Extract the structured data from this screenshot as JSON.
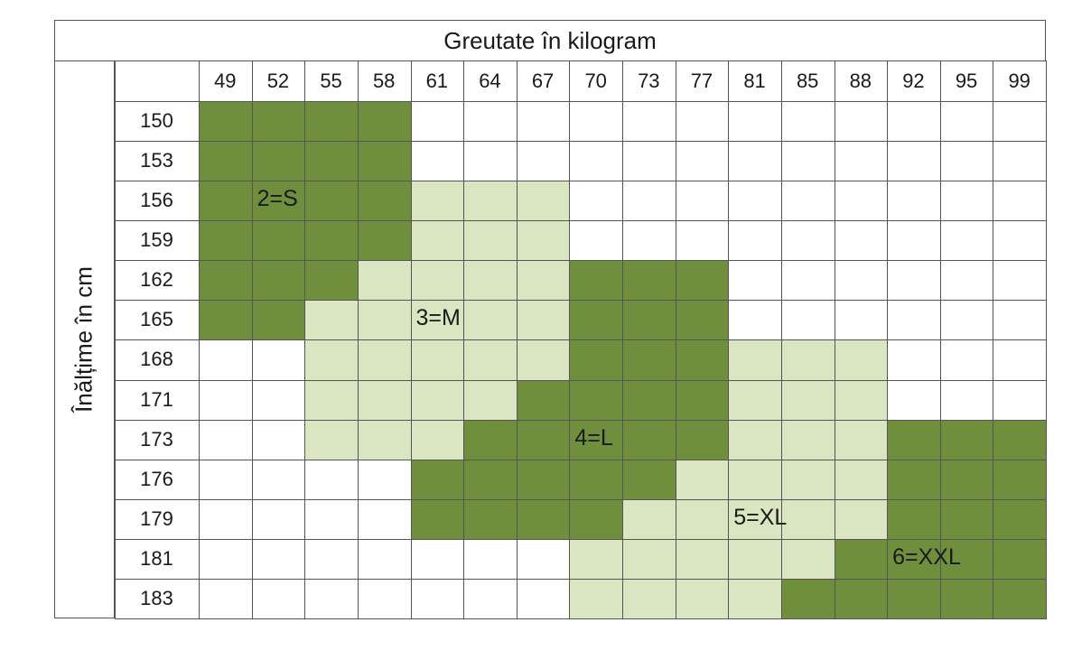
{
  "title": "Greutate în kilogram",
  "side_label": "Înălțime în cm",
  "colors": {
    "S": "#6f8f3d",
    "M": "#dae6c2",
    "L": "#6f8f3d",
    "XL": "#dae6c2",
    "XXL": "#6f8f3d",
    "empty": "#ffffff",
    "grid": "#555555"
  },
  "chart_data": {
    "type": "table",
    "title": "Greutate în kilogram",
    "ylabel": "Înălțime în cm",
    "columns": [
      "49",
      "52",
      "55",
      "58",
      "61",
      "64",
      "67",
      "70",
      "73",
      "77",
      "81",
      "85",
      "88",
      "92",
      "95",
      "99"
    ],
    "rows": [
      "150",
      "153",
      "156",
      "159",
      "162",
      "165",
      "168",
      "171",
      "173",
      "176",
      "179",
      "181",
      "183"
    ],
    "cells": [
      [
        "S",
        "S",
        "S",
        "S",
        "",
        "",
        "",
        "",
        "",
        "",
        "",
        "",
        "",
        "",
        "",
        ""
      ],
      [
        "S",
        "S",
        "S",
        "S",
        "",
        "",
        "",
        "",
        "",
        "",
        "",
        "",
        "",
        "",
        "",
        ""
      ],
      [
        "S",
        "S",
        "S",
        "S",
        "M",
        "M",
        "M",
        "",
        "",
        "",
        "",
        "",
        "",
        "",
        "",
        ""
      ],
      [
        "S",
        "S",
        "S",
        "S",
        "M",
        "M",
        "M",
        "",
        "",
        "",
        "",
        "",
        "",
        "",
        "",
        ""
      ],
      [
        "S",
        "S",
        "S",
        "M",
        "M",
        "M",
        "M",
        "L",
        "L",
        "L",
        "",
        "",
        "",
        "",
        "",
        ""
      ],
      [
        "S",
        "S",
        "M",
        "M",
        "M",
        "M",
        "M",
        "L",
        "L",
        "L",
        "",
        "",
        "",
        "",
        "",
        ""
      ],
      [
        "",
        "",
        "M",
        "M",
        "M",
        "M",
        "M",
        "L",
        "L",
        "L",
        "XL",
        "XL",
        "XL",
        "",
        "",
        ""
      ],
      [
        "",
        "",
        "M",
        "M",
        "M",
        "M",
        "L",
        "L",
        "L",
        "L",
        "XL",
        "XL",
        "XL",
        "",
        "",
        ""
      ],
      [
        "",
        "",
        "M",
        "M",
        "M",
        "L",
        "L",
        "L",
        "L",
        "L",
        "XL",
        "XL",
        "XL",
        "XXL",
        "XXL",
        "XXL"
      ],
      [
        "",
        "",
        "",
        "",
        "L",
        "L",
        "L",
        "L",
        "L",
        "XL",
        "XL",
        "XL",
        "XL",
        "XXL",
        "XXL",
        "XXL"
      ],
      [
        "",
        "",
        "",
        "",
        "L",
        "L",
        "L",
        "L",
        "XL",
        "XL",
        "XL",
        "XL",
        "XL",
        "XXL",
        "XXL",
        "XXL"
      ],
      [
        "",
        "",
        "",
        "",
        "",
        "",
        "",
        "XL",
        "XL",
        "XL",
        "XL",
        "XL",
        "XXL",
        "XXL",
        "XXL",
        "XXL"
      ],
      [
        "",
        "",
        "",
        "",
        "",
        "",
        "",
        "XL",
        "XL",
        "XL",
        "XL",
        "XXL",
        "XXL",
        "XXL",
        "XXL",
        "XXL"
      ]
    ],
    "size_labels": [
      {
        "text": "2=S",
        "row": 2,
        "col": 1
      },
      {
        "text": "3=M",
        "row": 5,
        "col": 4
      },
      {
        "text": "4=L",
        "row": 8,
        "col": 7
      },
      {
        "text": "5=XL",
        "row": 10,
        "col": 10
      },
      {
        "text": "6=XXL",
        "row": 11,
        "col": 13
      }
    ]
  }
}
